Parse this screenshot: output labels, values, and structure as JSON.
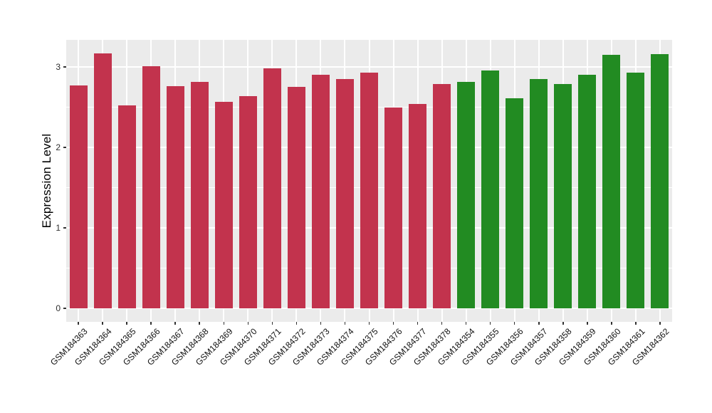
{
  "chart_data": {
    "type": "bar",
    "title": "",
    "xlabel": "",
    "ylabel": "Expression Level",
    "ylim": [
      0,
      3.35
    ],
    "yticks": [
      "0",
      "1",
      "2",
      "3"
    ],
    "yticks_minor": [
      0.5,
      1.5,
      2.5
    ],
    "grid": "white major and minor gridlines on gray panel (ggplot style)",
    "legend": "none",
    "panel_background": "#EBEBEB",
    "page_background": "#ffffff",
    "group_colors": {
      "red": "#C2334D",
      "green": "#228B22"
    },
    "bars": [
      {
        "label": "GSM184363",
        "group": "red",
        "value": 2.77
      },
      {
        "label": "GSM184364",
        "group": "red",
        "value": 3.17
      },
      {
        "label": "GSM184365",
        "group": "red",
        "value": 2.52
      },
      {
        "label": "GSM184366",
        "group": "red",
        "value": 3.01
      },
      {
        "label": "GSM184367",
        "group": "red",
        "value": 2.76
      },
      {
        "label": "GSM184368",
        "group": "red",
        "value": 2.81
      },
      {
        "label": "GSM184369",
        "group": "red",
        "value": 2.57
      },
      {
        "label": "GSM184370",
        "group": "red",
        "value": 2.64
      },
      {
        "label": "GSM184371",
        "group": "red",
        "value": 2.98
      },
      {
        "label": "GSM184372",
        "group": "red",
        "value": 2.75
      },
      {
        "label": "GSM184373",
        "group": "red",
        "value": 2.9
      },
      {
        "label": "GSM184374",
        "group": "red",
        "value": 2.85
      },
      {
        "label": "GSM184375",
        "group": "red",
        "value": 2.93
      },
      {
        "label": "GSM184376",
        "group": "red",
        "value": 2.5
      },
      {
        "label": "GSM184377",
        "group": "red",
        "value": 2.54
      },
      {
        "label": "GSM184378",
        "group": "red",
        "value": 2.79
      },
      {
        "label": "GSM184354",
        "group": "green",
        "value": 2.81
      },
      {
        "label": "GSM184355",
        "group": "green",
        "value": 2.96
      },
      {
        "label": "GSM184356",
        "group": "green",
        "value": 2.61
      },
      {
        "label": "GSM184357",
        "group": "green",
        "value": 2.85
      },
      {
        "label": "GSM184358",
        "group": "green",
        "value": 2.79
      },
      {
        "label": "GSM184359",
        "group": "green",
        "value": 2.9
      },
      {
        "label": "GSM184360",
        "group": "green",
        "value": 3.15
      },
      {
        "label": "GSM184361",
        "group": "green",
        "value": 2.93
      },
      {
        "label": "GSM184362",
        "group": "green",
        "value": 3.16
      }
    ]
  }
}
